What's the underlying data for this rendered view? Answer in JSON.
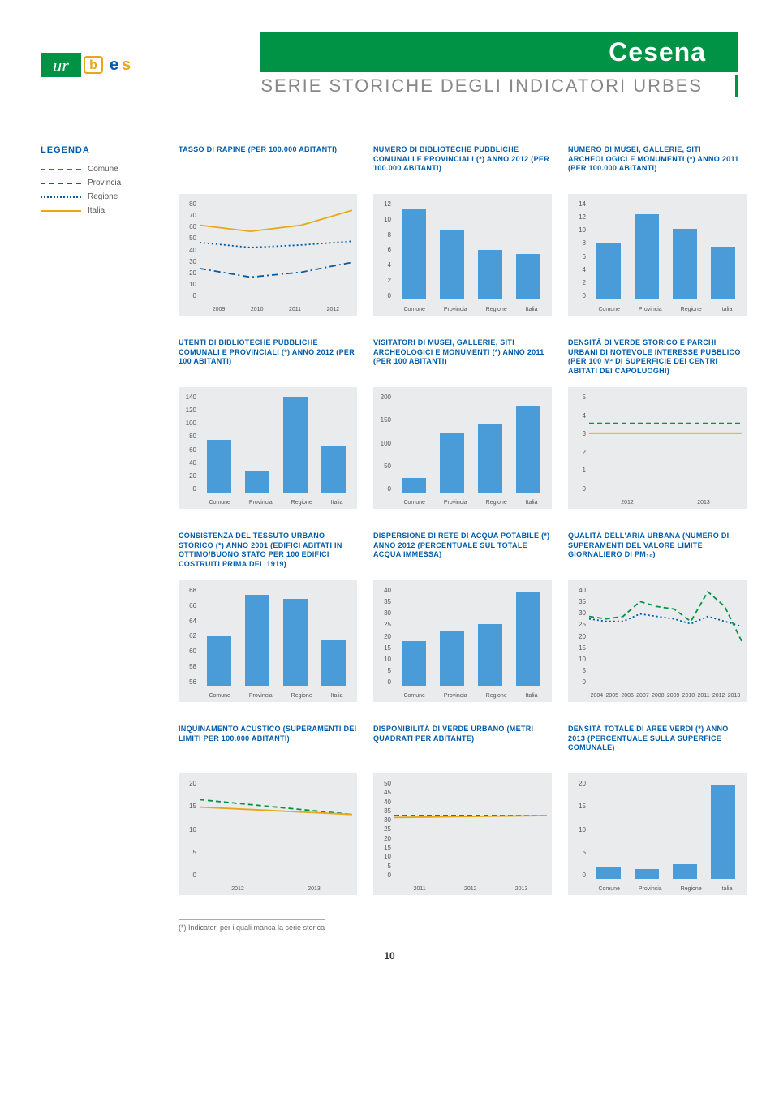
{
  "header": {
    "city": "Cesena",
    "subtitle": "SERIE STORICHE DEGLI INDICATORI URBES"
  },
  "logo": {
    "part1": "ur",
    "part2": "bes"
  },
  "legend": {
    "title": "LEGENDA",
    "items": [
      {
        "label": "Comune",
        "style": "dashed",
        "color": "#009245"
      },
      {
        "label": "Provincia",
        "style": "dashdot",
        "color": "#005baa"
      },
      {
        "label": "Regione",
        "style": "dotted",
        "color": "#005baa"
      },
      {
        "label": "Italia",
        "style": "solid",
        "color": "#e6a817"
      }
    ]
  },
  "colors": {
    "bar": "#4a9cd8",
    "plot_bg": "#e9ebec",
    "title": "#005baa"
  },
  "charts": [
    {
      "title": "TASSO DI RAPINE (PER 100.000 ABITANTI)",
      "type": "line",
      "ymin": 0,
      "ymax": 80,
      "ystep": 10,
      "x": [
        "2009",
        "2010",
        "2011",
        "2012"
      ],
      "series": [
        {
          "key": "Italia",
          "color": "#e6a817",
          "style": "solid",
          "values": [
            60,
            55,
            60,
            72
          ]
        },
        {
          "key": "Regione",
          "color": "#005baa",
          "style": "dotted",
          "values": [
            46,
            42,
            44,
            47
          ]
        },
        {
          "key": "Provincia",
          "color": "#005baa",
          "style": "dashdot",
          "values": [
            25,
            18,
            22,
            30
          ]
        }
      ]
    },
    {
      "title": "NUMERO DI BIBLIOTECHE PUBBLICHE COMUNALI E PROVINCIALI (*) ANNO 2012 (PER 100.000 ABITANTI)",
      "type": "bar",
      "ymin": 0,
      "ymax": 12,
      "ystep": 2,
      "x": [
        "Comune",
        "Provincia",
        "Regione",
        "Italia"
      ],
      "values": [
        11,
        8.5,
        6,
        5.5
      ]
    },
    {
      "title": "NUMERO DI MUSEI, GALLERIE, SITI ARCHEOLOGICI E MONUMENTI (*) ANNO 2011 (PER 100.000 ABITANTI)",
      "type": "bar",
      "ymin": 0,
      "ymax": 14,
      "ystep": 2,
      "x": [
        "Comune",
        "Provincia",
        "Regione",
        "Italia"
      ],
      "values": [
        8,
        12,
        10,
        7.5
      ]
    },
    {
      "title": "UTENTI DI BIBLIOTECHE PUBBLICHE COMUNALI E PROVINCIALI (*) ANNO 2012 (PER 100 ABITANTI)",
      "type": "bar",
      "ymin": 0,
      "ymax": 140,
      "ystep": 20,
      "x": [
        "Comune",
        "Provincia",
        "Regione",
        "Italia"
      ],
      "values": [
        75,
        30,
        135,
        65
      ]
    },
    {
      "title": "VISITATORI DI MUSEI, GALLERIE, SITI ARCHEOLOGICI E MONUMENTI (*) ANNO 2011 (PER 100 ABITANTI)",
      "type": "bar",
      "ymin": 0,
      "ymax": 200,
      "ystep": 50,
      "x": [
        "Comune",
        "Provincia",
        "Regione",
        "Italia"
      ],
      "values": [
        30,
        120,
        140,
        175
      ]
    },
    {
      "title": "DENSITÀ DI VERDE STORICO E PARCHI URBANI DI NOTEVOLE INTERESSE PUBBLICO (PER 100 M² DI SUPERFICIE DEI CENTRI ABITATI DEI CAPOLUOGHI)",
      "type": "line",
      "ymin": 0,
      "ymax": 5,
      "ystep": 1,
      "x": [
        "2012",
        "2013"
      ],
      "series": [
        {
          "key": "Comune",
          "color": "#009245",
          "style": "dashed",
          "values": [
            3.5,
            3.5
          ]
        },
        {
          "key": "Italia",
          "color": "#e6a817",
          "style": "solid",
          "values": [
            3.0,
            3.0
          ]
        }
      ]
    },
    {
      "title": "CONSISTENZA DEL TESSUTO URBANO STORICO (*) ANNO 2001 (EDIFICI ABITATI IN OTTIMO/BUONO STATO PER 100 EDIFICI COSTRUITI PRIMA DEL 1919)",
      "type": "bar",
      "ymin": 56,
      "ymax": 68,
      "ystep": 2,
      "x": [
        "Comune",
        "Provincia",
        "Regione",
        "Italia"
      ],
      "values": [
        62,
        67,
        66.5,
        61.5
      ]
    },
    {
      "title": "DISPERSIONE DI RETE DI ACQUA POTABILE (*) ANNO 2012 (PERCENTUALE SUL TOTALE ACQUA IMMESSA)",
      "type": "bar",
      "ymin": 0,
      "ymax": 40,
      "ystep": 5,
      "x": [
        "Comune",
        "Provincia",
        "Regione",
        "Italia"
      ],
      "values": [
        18,
        22,
        25,
        38
      ]
    },
    {
      "title": "QUALITÀ DELL'ARIA URBANA (NUMERO DI SUPERAMENTI DEL VALORE LIMITE GIORNALIERO DI PM₁₀)",
      "type": "line",
      "ymin": 0,
      "ymax": 40,
      "ystep": 5,
      "x": [
        "2004",
        "2005",
        "2006",
        "2007",
        "2008",
        "2009",
        "2010",
        "2011",
        "2012",
        "2013"
      ],
      "series": [
        {
          "key": "Comune",
          "color": "#009245",
          "style": "dashed",
          "values": [
            28,
            27,
            28,
            34,
            32,
            31,
            26,
            38,
            32,
            18
          ]
        },
        {
          "key": "Regione",
          "color": "#005baa",
          "style": "dotted",
          "values": [
            27,
            26,
            26,
            29,
            28,
            27,
            25,
            28,
            26,
            24
          ]
        }
      ]
    },
    {
      "title": "INQUINAMENTO ACUSTICO (SUPERAMENTI DEI LIMITI PER 100.000 ABITANTI)",
      "type": "line",
      "ymin": 0,
      "ymax": 20,
      "ystep": 5,
      "x": [
        "2012",
        "2013"
      ],
      "series": [
        {
          "key": "Comune",
          "color": "#009245",
          "style": "dashed",
          "values": [
            16,
            13
          ]
        },
        {
          "key": "Italia",
          "color": "#e6a817",
          "style": "solid",
          "values": [
            14.5,
            13
          ]
        }
      ]
    },
    {
      "title": "DISPONIBILITÀ DI VERDE URBANO (METRI QUADRATI PER ABITANTE)",
      "type": "line",
      "ymin": 0,
      "ymax": 50,
      "ystep": 5,
      "x": [
        "2011",
        "2012",
        "2013"
      ],
      "series": [
        {
          "key": "Comune",
          "color": "#009245",
          "style": "dashed",
          "values": [
            32,
            32,
            32
          ]
        },
        {
          "key": "Italia",
          "color": "#e6a817",
          "style": "solid",
          "values": [
            31,
            31.5,
            32
          ]
        }
      ]
    },
    {
      "title": "DENSITÀ TOTALE DI AREE VERDI (*) ANNO 2013 (PERCENTUALE SULLA SUPERFICE COMUNALE)",
      "type": "bar",
      "ymin": 0,
      "ymax": 20,
      "ystep": 5,
      "x": [
        "Comune",
        "Provincia",
        "Regione",
        "Italia"
      ],
      "values": [
        2.5,
        2,
        3,
        19
      ]
    }
  ],
  "footnote": "(*) Indicatori per i quali manca la serie storica",
  "page_number": "10"
}
